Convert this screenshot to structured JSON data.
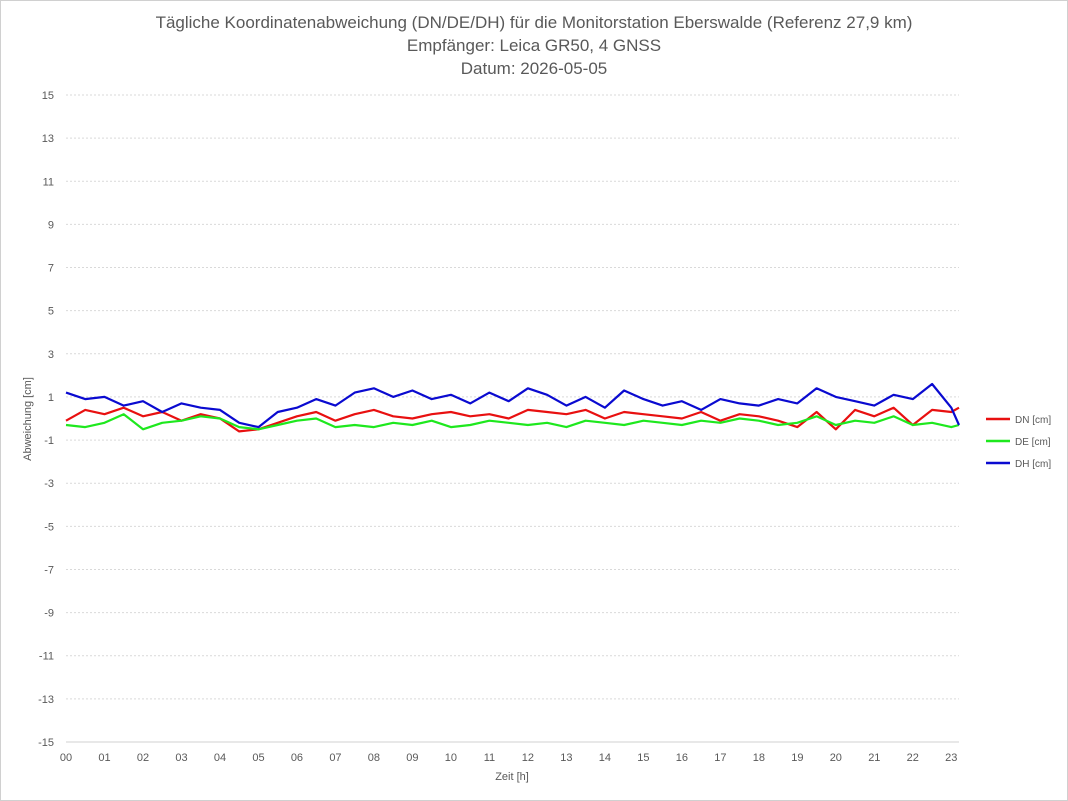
{
  "chart_data": {
    "type": "line",
    "title": "Tägliche Koordinatenabweichung (DN/DE/DH) für die Monitorstation Eberswalde (Referenz 27,9 km)",
    "subtitle": "Empfänger: Leica GR50, 4 GNSS",
    "date_line": "Datum: 2026-05-05",
    "xlabel": "Zeit [h]",
    "ylabel": "Abweichung [cm]",
    "xlim": [
      0,
      23.2
    ],
    "ylim": [
      -15,
      15
    ],
    "x_ticks": [
      "00",
      "01",
      "02",
      "03",
      "04",
      "05",
      "06",
      "07",
      "08",
      "09",
      "10",
      "11",
      "12",
      "13",
      "14",
      "15",
      "16",
      "17",
      "18",
      "19",
      "20",
      "21",
      "22",
      "23"
    ],
    "y_ticks": [
      15,
      13,
      11,
      9,
      7,
      5,
      3,
      1,
      -1,
      -3,
      -5,
      -7,
      -9,
      -11,
      -13,
      -15
    ],
    "grid": "horizontal dotted",
    "legend_position": "right",
    "series": [
      {
        "name": "DN [cm]",
        "color": "#e81010",
        "x": [
          0,
          0.5,
          1,
          1.5,
          2,
          2.5,
          3,
          3.5,
          4,
          4.5,
          5,
          5.5,
          6,
          6.5,
          7,
          7.5,
          8,
          8.5,
          9,
          9.5,
          10,
          10.5,
          11,
          11.5,
          12,
          12.5,
          13,
          13.5,
          14,
          14.5,
          15,
          15.5,
          16,
          16.5,
          17,
          17.5,
          18,
          18.5,
          19,
          19.5,
          20,
          20.5,
          21,
          21.5,
          22,
          22.5,
          23,
          23.2
        ],
        "values": [
          -0.1,
          0.4,
          0.2,
          0.5,
          0.1,
          0.3,
          -0.1,
          0.2,
          0.0,
          -0.6,
          -0.5,
          -0.2,
          0.1,
          0.3,
          -0.1,
          0.2,
          0.4,
          0.1,
          0.0,
          0.2,
          0.3,
          0.1,
          0.2,
          0.0,
          0.4,
          0.3,
          0.2,
          0.4,
          0.0,
          0.3,
          0.2,
          0.1,
          0.0,
          0.3,
          -0.1,
          0.2,
          0.1,
          -0.1,
          -0.4,
          0.3,
          -0.5,
          0.4,
          0.1,
          0.5,
          -0.3,
          0.4,
          0.3,
          0.5
        ]
      },
      {
        "name": "DE [cm]",
        "color": "#1ee81e",
        "x": [
          0,
          0.5,
          1,
          1.5,
          2,
          2.5,
          3,
          3.5,
          4,
          4.5,
          5,
          5.5,
          6,
          6.5,
          7,
          7.5,
          8,
          8.5,
          9,
          9.5,
          10,
          10.5,
          11,
          11.5,
          12,
          12.5,
          13,
          13.5,
          14,
          14.5,
          15,
          15.5,
          16,
          16.5,
          17,
          17.5,
          18,
          18.5,
          19,
          19.5,
          20,
          20.5,
          21,
          21.5,
          22,
          22.5,
          23,
          23.2
        ],
        "values": [
          -0.3,
          -0.4,
          -0.2,
          0.2,
          -0.5,
          -0.2,
          -0.1,
          0.1,
          0.0,
          -0.4,
          -0.5,
          -0.3,
          -0.1,
          0.0,
          -0.4,
          -0.3,
          -0.4,
          -0.2,
          -0.3,
          -0.1,
          -0.4,
          -0.3,
          -0.1,
          -0.2,
          -0.3,
          -0.2,
          -0.4,
          -0.1,
          -0.2,
          -0.3,
          -0.1,
          -0.2,
          -0.3,
          -0.1,
          -0.2,
          0.0,
          -0.1,
          -0.3,
          -0.2,
          0.1,
          -0.3,
          -0.1,
          -0.2,
          0.1,
          -0.3,
          -0.2,
          -0.4,
          -0.3
        ]
      },
      {
        "name": "DH [cm]",
        "color": "#0a0ad0",
        "x": [
          0,
          0.5,
          1,
          1.5,
          2,
          2.5,
          3,
          3.5,
          4,
          4.5,
          5,
          5.5,
          6,
          6.5,
          7,
          7.5,
          8,
          8.5,
          9,
          9.5,
          10,
          10.5,
          11,
          11.5,
          12,
          12.5,
          13,
          13.5,
          14,
          14.5,
          15,
          15.5,
          16,
          16.5,
          17,
          17.5,
          18,
          18.5,
          19,
          19.5,
          20,
          20.5,
          21,
          21.5,
          22,
          22.5,
          23,
          23.2
        ],
        "values": [
          1.2,
          0.9,
          1.0,
          0.6,
          0.8,
          0.3,
          0.7,
          0.5,
          0.4,
          -0.2,
          -0.4,
          0.3,
          0.5,
          0.9,
          0.6,
          1.2,
          1.4,
          1.0,
          1.3,
          0.9,
          1.1,
          0.7,
          1.2,
          0.8,
          1.4,
          1.1,
          0.6,
          1.0,
          0.5,
          1.3,
          0.9,
          0.6,
          0.8,
          0.4,
          0.9,
          0.7,
          0.6,
          0.9,
          0.7,
          1.4,
          1.0,
          0.8,
          0.6,
          1.1,
          0.9,
          1.6,
          0.5,
          -0.3
        ]
      }
    ]
  }
}
